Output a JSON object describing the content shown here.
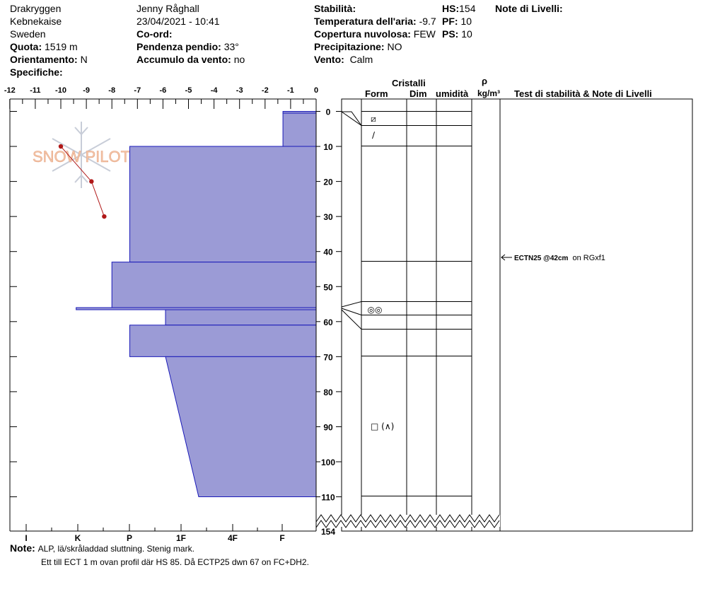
{
  "header": {
    "site": "Drakryggen",
    "region": "Kebnekaise",
    "country": "Sweden",
    "elevation_label": "Quota:",
    "elevation_value": "1519 m",
    "aspect_label": "Orientamento:",
    "aspect_value": "N",
    "specifics_label": "Specifiche:",
    "observer": "Jenny Råghall",
    "datetime": "23/04/2021 - 10:41",
    "coord_label": "Co-ord:",
    "slope_label": "Pendenza pendio:",
    "slope_value": "33°",
    "wind_loading_label": "Accumulo da vento:",
    "wind_loading_value": "no",
    "stability_label": "Stabilità:",
    "air_temp_label": "Temperatura dell'aria:",
    "air_temp_value": "-9.7",
    "cloud_label": "Copertura nuvolosa:",
    "cloud_value": "FEW",
    "precip_label": "Precipitazione:",
    "precip_value": "NO",
    "wind_label": "Vento:",
    "wind_value": "Calm",
    "hs_label": "HS:",
    "hs_value": "154",
    "pf_label": "PF:",
    "pf_value": "10",
    "ps_label": "PS:",
    "ps_value": "10",
    "layer_notes_label": "Note di Livelli:"
  },
  "columns": {
    "crystals": "Cristalli",
    "form": "Form",
    "size": "Dim",
    "moisture": "umidità",
    "rho": "ρ",
    "density_unit": "kg/m³",
    "tests": "Test di stabilità & Note di Livelli"
  },
  "notes": {
    "label": "Note:",
    "line1": "ALP, lä/skråladdad sluttning. Stenig mark.",
    "line2": "Ett till ECT 1 m ovan profil där HS 85. Då ECTP25 dwn 67 on FC+DH2."
  },
  "watermark": "SNOW PILOT",
  "test_result": {
    "code": "ECTN25 @42cm",
    "note": "on RGxf1",
    "depth": 42
  },
  "chart_data": {
    "type": "snow-profile",
    "temp_axis": {
      "ticks": [
        -12,
        -11,
        -10,
        -9,
        -8,
        -7,
        -6,
        -5,
        -4,
        -3,
        -2,
        -1,
        0
      ],
      "range": [
        -12,
        0
      ]
    },
    "depth_axis": {
      "ticks": [
        0,
        10,
        20,
        30,
        40,
        50,
        60,
        70,
        80,
        90,
        100,
        110
      ],
      "bottom_label": "154",
      "range": [
        0,
        154
      ]
    },
    "hardness_axis": {
      "ticks": [
        "I",
        "K",
        "P",
        "1F",
        "4F",
        "F"
      ]
    },
    "hardness_profile": [
      {
        "top": 0,
        "bottom": 0.5,
        "temp_extent": -1.3
      },
      {
        "top": 0.5,
        "bottom": 10,
        "temp_extent": -1.3
      },
      {
        "top": 10,
        "bottom": 43,
        "temp_extent": -7.3
      },
      {
        "top": 43,
        "bottom": 56,
        "temp_extent": -8.0
      },
      {
        "top": 56,
        "bottom": 56.6,
        "temp_extent": -9.4
      },
      {
        "top": 56.6,
        "bottom": 61,
        "temp_extent": -5.9
      },
      {
        "top": 61,
        "bottom": 70,
        "temp_extent": -7.3
      },
      {
        "top": 70,
        "bottom": 110,
        "temp_extent_top": -5.9,
        "temp_extent_bottom": -4.6
      }
    ],
    "temperature_profile": [
      {
        "depth": 10,
        "temp": -10.0
      },
      {
        "depth": 20,
        "temp": -8.8
      },
      {
        "depth": 30,
        "temp": -8.3
      }
    ],
    "layer_boundaries": [
      0,
      4,
      10,
      43,
      54,
      58,
      62,
      70,
      110
    ],
    "layer_forms": [
      {
        "depth": 2,
        "symbol": "⧄"
      },
      {
        "depth": 7,
        "symbol": "∕"
      },
      {
        "depth": 56,
        "symbol": "◎◎"
      },
      {
        "depth": 90,
        "symbol": "□ (∧)"
      }
    ]
  }
}
